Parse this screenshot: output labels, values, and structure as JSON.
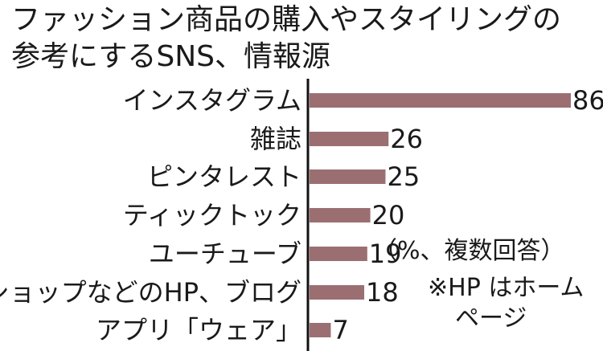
{
  "title": {
    "line1": "ファッション商品の購入やスタイリングの",
    "line2": "参考にするSNS、情報源"
  },
  "notes": {
    "unit": "（%、複数回答）",
    "hp_line1": "※HP はホーム",
    "hp_line2": "ページ"
  },
  "colors": {
    "bar": "#9b6f72",
    "axis": "#111111",
    "text": "#1a1a1a"
  },
  "chart_data": {
    "type": "bar",
    "orientation": "horizontal",
    "title": "ファッション商品の購入やスタイリングの参考にするSNS、情報源",
    "categories": [
      "インスタグラム",
      "雑誌",
      "ピンタレスト",
      "ティックトック",
      "ユーチューブ",
      "ショップなどのHP、ブログ",
      "アプリ「ウェア」"
    ],
    "values": [
      86,
      26,
      25,
      20,
      19,
      18,
      7
    ],
    "xlim": [
      0,
      86
    ],
    "grid": false,
    "legend": false
  }
}
